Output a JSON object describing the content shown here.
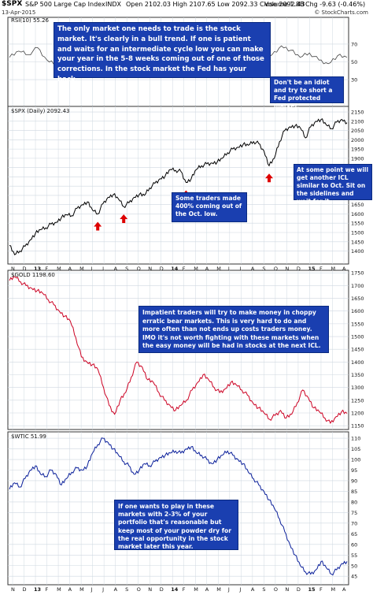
{
  "header": {
    "symbol": "$SPX",
    "name": "S&P 500 Large Cap Index",
    "exchange": "INDX",
    "date": "13-Apr-2015",
    "ohlc": "Open 2102.03  High 2107.65  Low 2092.33  Close 2092.43",
    "volume": "Volume 1.8B",
    "change": "Chg -9.63 (-0.46%)",
    "credit": "© StockCharts.com"
  },
  "colors": {
    "spx": "#000000",
    "gold": "#cc0022",
    "wtic": "#0a1f9a",
    "note_bg": "#1a3fb0",
    "arrow": "#dd0000",
    "grid": "#cfd8e0"
  },
  "chart_data": [
    {
      "type": "line",
      "name": "rsi",
      "title": "RSI(10) 55.26",
      "ylim": [
        0,
        100
      ],
      "yticks": [
        70,
        50,
        30
      ],
      "values": [
        55,
        62,
        58,
        66,
        52,
        48,
        60,
        68,
        64,
        55,
        44,
        50,
        62,
        70,
        66,
        58,
        46,
        40,
        52,
        64,
        60,
        55,
        48,
        56,
        66,
        62,
        50,
        42,
        58,
        68,
        63,
        55,
        60,
        52,
        48,
        57,
        55
      ]
    },
    {
      "type": "line",
      "name": "spx",
      "title": "$SPX (Daily) 2092.43",
      "ylim": [
        1330,
        2180
      ],
      "yticks": [
        1400,
        1450,
        1500,
        1550,
        1600,
        1650,
        1700,
        1750,
        1800,
        1850,
        1900,
        1950,
        2000,
        2050,
        2100,
        2150
      ],
      "x_labels": [
        "N",
        "D",
        "13",
        "F",
        "M",
        "A",
        "M",
        "J",
        "J",
        "A",
        "S",
        "O",
        "N",
        "D",
        "14",
        "F",
        "M",
        "A",
        "M",
        "J",
        "J",
        "A",
        "S",
        "O",
        "N",
        "D",
        "15",
        "F",
        "M",
        "A"
      ],
      "values": [
        1430,
        1380,
        1400,
        1425,
        1460,
        1495,
        1515,
        1525,
        1545,
        1555,
        1580,
        1595,
        1590,
        1630,
        1650,
        1665,
        1620,
        1600,
        1655,
        1690,
        1705,
        1680,
        1640,
        1660,
        1690,
        1705,
        1700,
        1740,
        1765,
        1790,
        1805,
        1840,
        1835,
        1830,
        1770,
        1790,
        1840,
        1860,
        1870,
        1875,
        1880,
        1900,
        1930,
        1950,
        1960,
        1975,
        1970,
        1990,
        1980,
        1940,
        1860,
        1900,
        1990,
        2050,
        2070,
        2075,
        2065,
        2010,
        2070,
        2100,
        2110,
        2080,
        2060,
        2095,
        2110,
        2092
      ],
      "arrows_idx": [
        17,
        22,
        34,
        50
      ]
    },
    {
      "type": "line",
      "name": "gold",
      "title": "$GOLD 1198.60",
      "ylim": [
        1135,
        1760
      ],
      "yticks": [
        1150,
        1200,
        1250,
        1300,
        1350,
        1400,
        1450,
        1500,
        1550,
        1600,
        1650,
        1700,
        1750
      ],
      "values": [
        1720,
        1735,
        1715,
        1700,
        1690,
        1680,
        1670,
        1645,
        1625,
        1600,
        1580,
        1560,
        1495,
        1420,
        1400,
        1390,
        1370,
        1300,
        1230,
        1195,
        1250,
        1280,
        1340,
        1400,
        1380,
        1330,
        1320,
        1280,
        1250,
        1230,
        1210,
        1230,
        1250,
        1290,
        1320,
        1350,
        1330,
        1300,
        1280,
        1295,
        1320,
        1310,
        1290,
        1270,
        1240,
        1220,
        1200,
        1175,
        1190,
        1210,
        1180,
        1195,
        1240,
        1290,
        1260,
        1220,
        1205,
        1180,
        1160,
        1185,
        1205,
        1198
      ]
    },
    {
      "type": "line",
      "name": "wtic",
      "title": "$WTIC 51.99",
      "ylim": [
        41,
        113
      ],
      "yticks": [
        45,
        50,
        55,
        60,
        65,
        70,
        75,
        80,
        85,
        90,
        95,
        100,
        105,
        110
      ],
      "x_labels": [
        "N",
        "D",
        "13",
        "F",
        "M",
        "A",
        "M",
        "J",
        "J",
        "A",
        "S",
        "O",
        "N",
        "D",
        "14",
        "F",
        "M",
        "A",
        "M",
        "J",
        "J",
        "A",
        "S",
        "O",
        "N",
        "D",
        "15",
        "F",
        "M",
        "A"
      ],
      "values": [
        86,
        89,
        87,
        91,
        95,
        97,
        93,
        92,
        95,
        93,
        88,
        91,
        94,
        96,
        95,
        97,
        103,
        107,
        110,
        108,
        105,
        102,
        99,
        97,
        93,
        95,
        98,
        97,
        99,
        101,
        102,
        103,
        104,
        103,
        105,
        106,
        103,
        102,
        100,
        98,
        100,
        102,
        104,
        102,
        100,
        98,
        94,
        91,
        88,
        85,
        81,
        77,
        72,
        66,
        60,
        55,
        50,
        47,
        46,
        48,
        52,
        49,
        46,
        48,
        51,
        52
      ]
    }
  ],
  "notes": {
    "main": "The only market one needs to trade is the stock market. It's clearly in a bull trend. If one is patient and waits for an intermediate cycle low you can make your year in the 5-8 weeks coming out of one of those corrections. In the stock market the Fed has your back.",
    "idiot": "Don't be an idiot and try to short a Fed protected market.",
    "icl": "At some point we will get another ICL similar to Oct. Sit on the sidelines and wait for it.",
    "traders": "Some traders made 400% coming out of the Oct. low.",
    "gold": "Impatient traders will try to make money in choppy erratic bear markets. This is very hard to do and more often than not ends up costs traders money. IMO it's not worth fighting with these markets when the easy money will be had in stocks at the next ICL.",
    "wtic": "If one wants to play in these markets with 2-3% of your portfolio that's reasonable but keep most of your powder dry for the real opportunity in the stock market later this year."
  }
}
